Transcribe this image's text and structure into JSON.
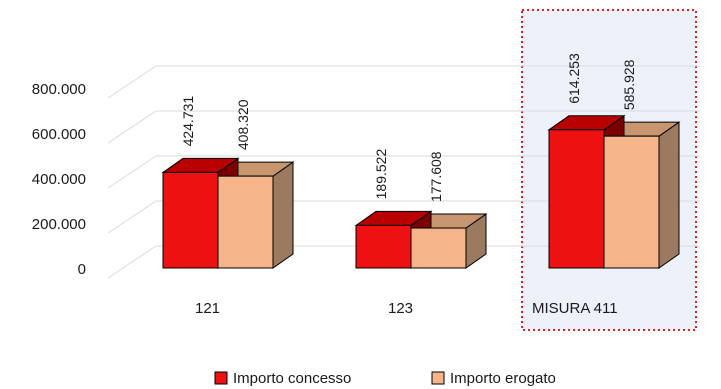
{
  "chart_data": {
    "type": "bar",
    "categories": [
      "121",
      "123",
      "MISURA 411"
    ],
    "series": [
      {
        "name": "Importo concesso",
        "values": [
          424731,
          189522,
          614253
        ],
        "labels": [
          "424.731",
          "189.522",
          "614.253"
        ]
      },
      {
        "name": "Importo erogato",
        "values": [
          408320,
          177608,
          585928
        ],
        "labels": [
          "408.320",
          "177.608",
          "585.928"
        ]
      }
    ],
    "yticks": [
      0,
      200000,
      400000,
      600000,
      800000
    ],
    "ytick_labels": [
      "0",
      "200.000",
      "400.000",
      "600.000",
      "800.000"
    ],
    "ylim": [
      0,
      800000
    ],
    "grid": true,
    "three_d": true,
    "legend_position": "bottom",
    "highlighted_category": "MISURA 411",
    "colors": {
      "concesso_front": "#ee1111",
      "concesso_top": "#b80000",
      "erogato_front": "#f5b48a",
      "erogato_side": "#9c7a60",
      "highlight_fill": "#edf2fa",
      "highlight_border": "#e02020",
      "grid": "#d9d9d9"
    }
  }
}
